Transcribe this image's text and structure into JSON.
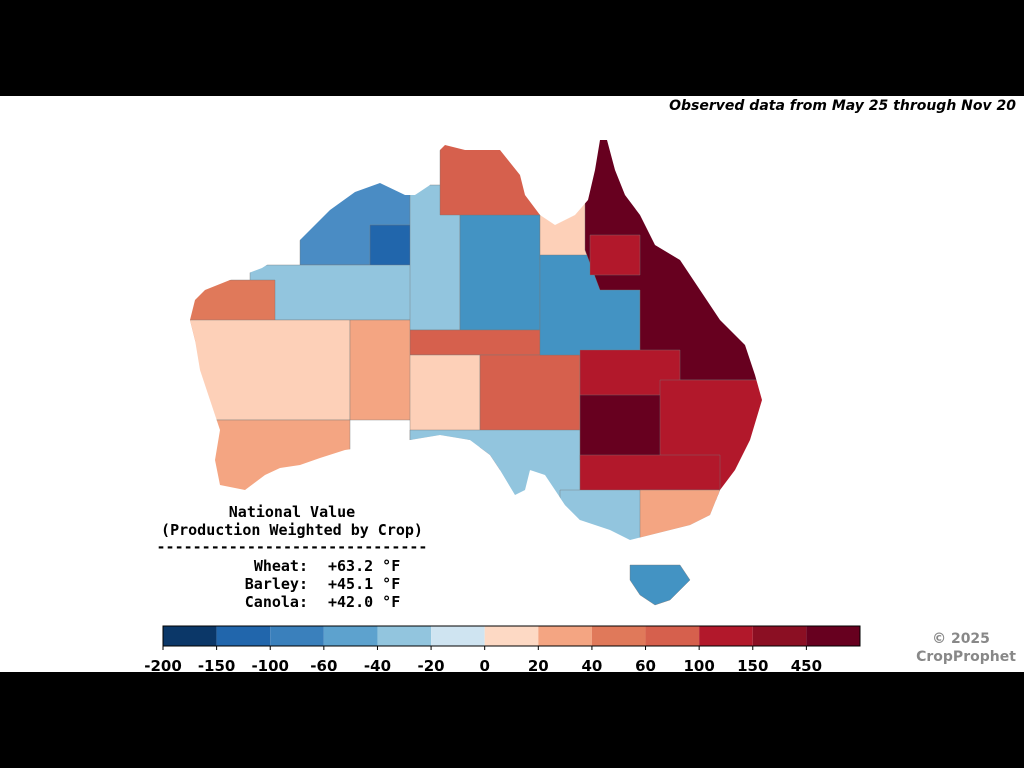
{
  "header": {
    "note": "Observed data from May 25 through Nov 20"
  },
  "summary": {
    "title": "National Value",
    "subtitle": "(Production Weighted by Crop)",
    "separator": "------------------------------",
    "rows": [
      {
        "crop": "Wheat:",
        "value": "+63.2 °F"
      },
      {
        "crop": "Barley:",
        "value": "+45.1 °F"
      },
      {
        "crop": "Canola:",
        "value": "+42.0 °F"
      }
    ]
  },
  "colorbar": {
    "ticks": [
      -200,
      -150,
      -100,
      -60,
      -40,
      -20,
      0,
      20,
      40,
      60,
      100,
      150,
      450
    ],
    "colors": [
      "#0b3768",
      "#2166ac",
      "#3a80bc",
      "#5da2ce",
      "#92c5de",
      "#cfe4f1",
      "#fdd9c4",
      "#f4a582",
      "#e0795a",
      "#d6604d",
      "#b2182b",
      "#8b0f23",
      "#67001f"
    ]
  },
  "footer": {
    "copyright": "© 2025",
    "brand": "CropProphet"
  }
}
